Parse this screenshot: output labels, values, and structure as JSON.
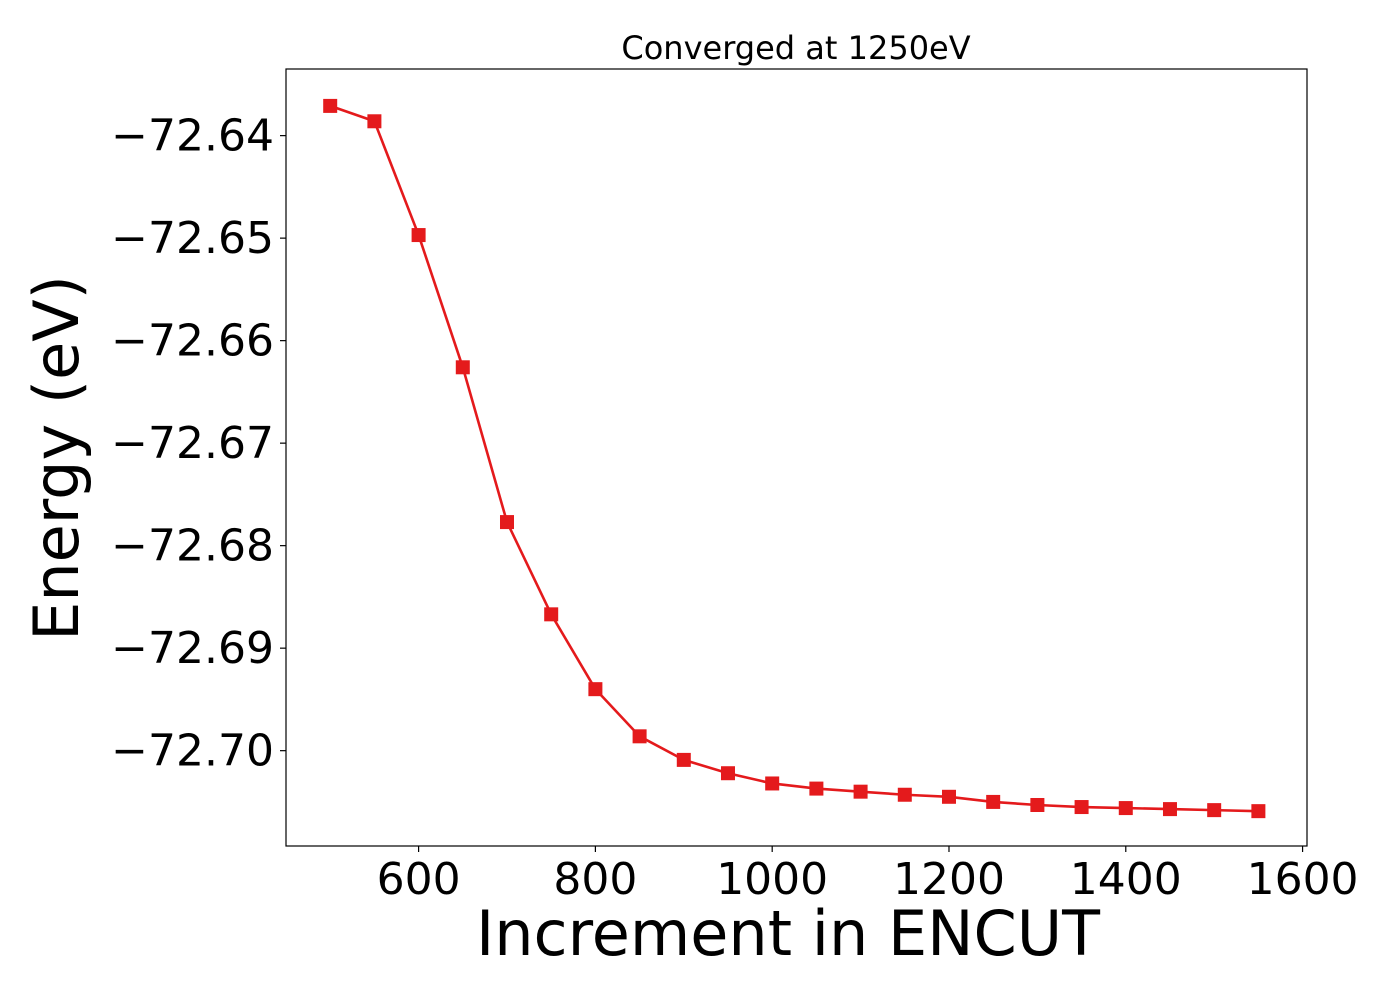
{
  "chart_data": {
    "type": "line",
    "title": "Converged at 1250eV",
    "xlabel": "Increment in ENCUT",
    "ylabel": "Energy (eV)",
    "xlim": [
      450,
      1605
    ],
    "ylim": [
      -72.7093,
      -72.6335
    ],
    "x_ticks": [
      600,
      800,
      1000,
      1200,
      1400,
      1600
    ],
    "x_tick_labels": [
      "600",
      "800",
      "1000",
      "1200",
      "1400",
      "1600"
    ],
    "y_ticks": [
      -72.64,
      -72.65,
      -72.66,
      -72.67,
      -72.68,
      -72.69,
      -72.7
    ],
    "y_tick_labels": [
      "−72.64",
      "−72.65",
      "−72.66",
      "−72.67",
      "−72.68",
      "−72.69",
      "−72.70"
    ],
    "grid": false,
    "series": [
      {
        "color": "#e41a1c",
        "marker": "square",
        "x": [
          500,
          550,
          600,
          650,
          700,
          750,
          800,
          850,
          900,
          950,
          1000,
          1050,
          1100,
          1150,
          1200,
          1250,
          1300,
          1350,
          1400,
          1450,
          1500,
          1550
        ],
        "y": [
          -72.6371,
          -72.6386,
          -72.6497,
          -72.6626,
          -72.6777,
          -72.6867,
          -72.694,
          -72.6986,
          -72.7009,
          -72.7022,
          -72.7032,
          -72.7037,
          -72.704,
          -72.7043,
          -72.7045,
          -72.705,
          -72.7053,
          -72.7055,
          -72.7056,
          -72.7057,
          -72.7058,
          -72.7059
        ]
      }
    ]
  }
}
